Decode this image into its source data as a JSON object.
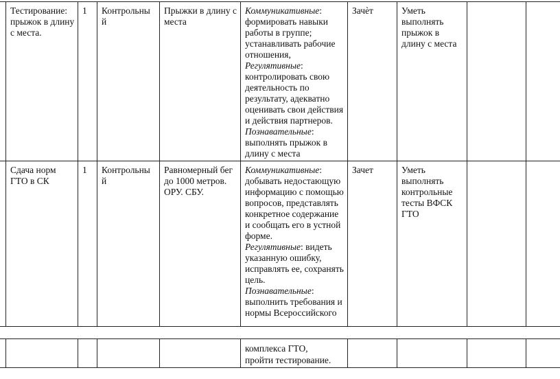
{
  "rows": [
    {
      "topic": "Тестирование: прыжок в длину с места.",
      "hours": "1",
      "type": "Контрольны й",
      "content": "Прыжки в длину с места",
      "uud": [
        {
          "label": "Коммуникативные",
          "text": ": формировать навыки работы в группе; устанавливать рабочие отношения,"
        },
        {
          "label": "Регулятивные",
          "text": ": контролировать свою деятельность по результату, адекватно оценивать свои действия и действия партнеров."
        },
        {
          "label": "Познавательные",
          "text": ": выполнять прыжок в длину с места"
        }
      ],
      "control": "Зачѐт",
      "result": "Уметь выполнять прыжок в длину с места"
    },
    {
      "topic": "Сдача норм ГТО в СК",
      "hours": "1",
      "type": "Контрольны й",
      "content": "Равномерный бег до 1000 метров. ОРУ. СБУ.",
      "uud": [
        {
          "label": "Коммуникативные",
          "text": ": добывать недостающую информацию с помощью вопросов, представлять конкретное содержание и сообщать его в устной форме."
        },
        {
          "label": "Регулятивные",
          "text": ": видеть указанную ошибку, исправлять ее, сохранять цель."
        },
        {
          "label": "Познавательные",
          "text": ": выполнить требования и нормы Всероссийского"
        }
      ],
      "control": "Зачет",
      "result": "Уметь выполнять контрольные тесты ВФСК ГТО"
    }
  ],
  "continuation": {
    "uud_line1": "комплекса ГТО,",
    "uud_line2": "пройти тестирование."
  }
}
